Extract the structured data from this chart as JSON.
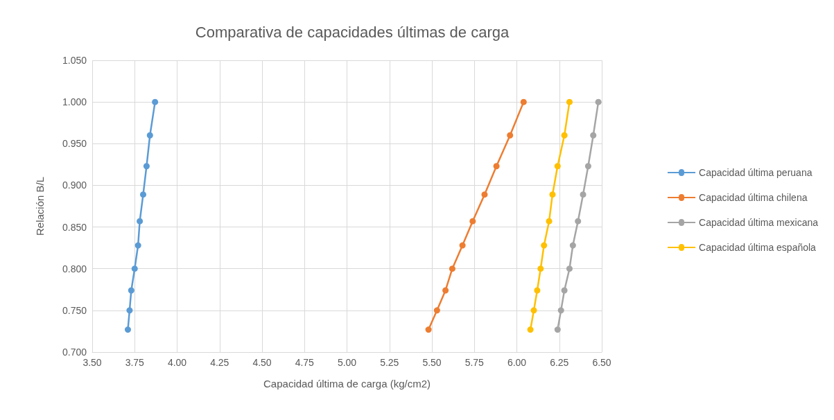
{
  "chart_data": {
    "type": "line",
    "title": "Comparativa de capacidades últimas de carga",
    "xlabel": "Capacidad última de carga (kg/cm2)",
    "ylabel": "Relación B/L",
    "series": [
      {
        "name": "Capacidad última peruana",
        "color": "#5b9bd5",
        "x": [
          3.87,
          3.84,
          3.82,
          3.8,
          3.78,
          3.77,
          3.75,
          3.73,
          3.72,
          3.71
        ],
        "values": [
          1.0,
          0.96,
          0.923,
          0.889,
          0.857,
          0.828,
          0.8,
          0.774,
          0.75,
          0.727
        ]
      },
      {
        "name": "Capacidad última chilena",
        "color": "#ed7d31",
        "x": [
          6.04,
          5.96,
          5.88,
          5.81,
          5.74,
          5.68,
          5.62,
          5.58,
          5.53,
          5.48
        ],
        "values": [
          1.0,
          0.96,
          0.923,
          0.889,
          0.857,
          0.828,
          0.8,
          0.774,
          0.75,
          0.727
        ]
      },
      {
        "name": "Capacidad última mexicana",
        "color": "#a5a5a5",
        "x": [
          6.48,
          6.45,
          6.42,
          6.39,
          6.36,
          6.33,
          6.31,
          6.28,
          6.26,
          6.24
        ],
        "values": [
          1.0,
          0.96,
          0.923,
          0.889,
          0.857,
          0.828,
          0.8,
          0.774,
          0.75,
          0.727
        ]
      },
      {
        "name": "Capacidad última española",
        "color": "#ffc000",
        "x": [
          6.31,
          6.28,
          6.24,
          6.21,
          6.19,
          6.16,
          6.14,
          6.12,
          6.1,
          6.08
        ],
        "values": [
          1.0,
          0.96,
          0.923,
          0.889,
          0.857,
          0.828,
          0.8,
          0.774,
          0.75,
          0.727
        ]
      }
    ],
    "xlim": [
      3.5,
      6.5
    ],
    "xticks": [
      {
        "value": 3.5,
        "label": "3.50"
      },
      {
        "value": 3.75,
        "label": "3.75"
      },
      {
        "value": 4,
        "label": "4.00"
      },
      {
        "value": 4.25,
        "label": "4.25"
      },
      {
        "value": 4.5,
        "label": "4.50"
      },
      {
        "value": 4.75,
        "label": "4.75"
      },
      {
        "value": 5,
        "label": "5.00"
      },
      {
        "value": 5.25,
        "label": "5.25"
      },
      {
        "value": 5.5,
        "label": "5.50"
      },
      {
        "value": 5.75,
        "label": "5.75"
      },
      {
        "value": 6,
        "label": "6.00"
      },
      {
        "value": 6.25,
        "label": "6.25"
      },
      {
        "value": 6.5,
        "label": "6.50"
      }
    ],
    "ylim": [
      0.7,
      1.05
    ],
    "yticks": [
      {
        "value": 0.7,
        "label": "0.700"
      },
      {
        "value": 0.75,
        "label": "0.750"
      },
      {
        "value": 0.8,
        "label": "0.800"
      },
      {
        "value": 0.85,
        "label": "0.850"
      },
      {
        "value": 0.9,
        "label": "0.900"
      },
      {
        "value": 0.95,
        "label": "0.950"
      },
      {
        "value": 1,
        "label": "1.000"
      },
      {
        "value": 1.05,
        "label": "1.050"
      }
    ],
    "grid": true,
    "legend": "right",
    "marker": "circle",
    "line_style": "solid"
  }
}
